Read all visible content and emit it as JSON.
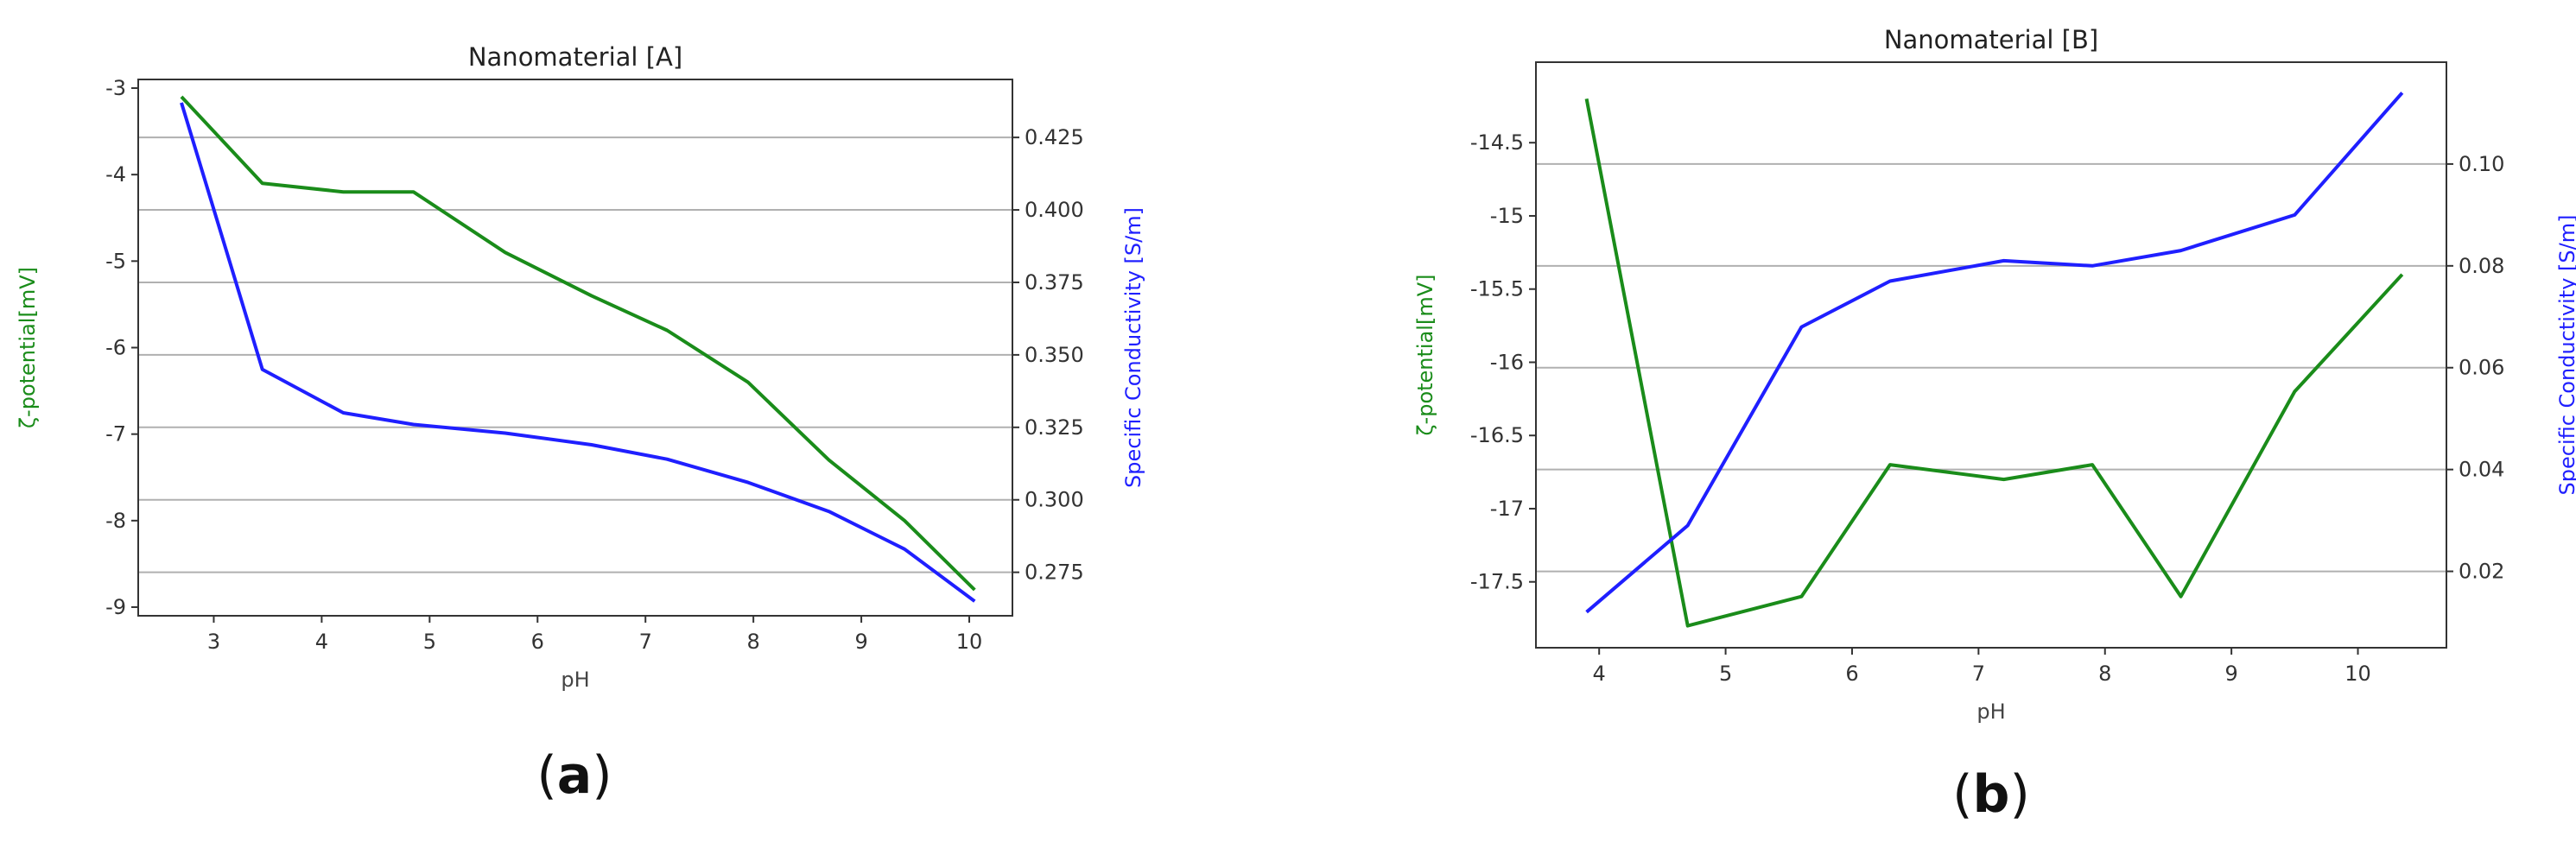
{
  "chart_data": [
    {
      "type": "line",
      "title": "Nanomaterial [A]",
      "xlabel": "pH",
      "ylabel": "ζ-potential[mV]",
      "y2label": "Specific Conductivity [S/m]",
      "caption_letter": "a",
      "xlim": [
        2.3,
        10.4
      ],
      "ylim": [
        -9.1,
        -2.9
      ],
      "y2lim": [
        0.26,
        0.445
      ],
      "xticks": [
        3,
        4,
        5,
        6,
        7,
        8,
        9,
        10
      ],
      "yticks": [
        -3,
        -4,
        -5,
        -6,
        -7,
        -8,
        -9
      ],
      "y2ticks": [
        0.425,
        0.4,
        0.375,
        0.35,
        0.325,
        0.3,
        0.275
      ],
      "y2tick_labels": [
        "0.425",
        "0.400",
        "0.375",
        "0.350",
        "0.325",
        "0.300",
        "0.275"
      ],
      "grid": "y2",
      "colors": {
        "zeta": "#1a8c1a",
        "conductivity": "#1f1fff",
        "grid": "#b0b0b0"
      },
      "series": [
        {
          "axis": "left",
          "x": [
            2.7,
            3.45,
            4.2,
            4.85,
            5.7,
            6.5,
            7.2,
            7.95,
            8.7,
            9.4,
            10.05
          ],
          "values": [
            -3.1,
            -4.1,
            -4.2,
            -4.2,
            -4.9,
            -5.4,
            -5.8,
            -6.4,
            -7.3,
            -8.0,
            -8.8
          ]
        },
        {
          "axis": "right",
          "x": [
            2.7,
            3.45,
            4.2,
            4.85,
            5.7,
            6.5,
            7.2,
            7.95,
            8.7,
            9.4,
            10.05
          ],
          "values": [
            0.437,
            0.345,
            0.33,
            0.326,
            0.323,
            0.319,
            0.314,
            0.306,
            0.296,
            0.283,
            0.265
          ]
        }
      ]
    },
    {
      "type": "line",
      "title": "Nanomaterial [B]",
      "xlabel": "pH",
      "ylabel": "ζ-potential[mV]",
      "y2label": "Specific Conductivity [S/m]",
      "caption_letter": "b",
      "xlim": [
        3.5,
        10.7
      ],
      "ylim": [
        -17.95,
        -13.95
      ],
      "y2lim": [
        0.005,
        0.12
      ],
      "xticks": [
        4,
        5,
        6,
        7,
        8,
        9,
        10
      ],
      "yticks": [
        -14.5,
        -15.0,
        -15.5,
        -16.0,
        -16.5,
        -17.0,
        -17.5
      ],
      "y2ticks": [
        0.1,
        0.08,
        0.06,
        0.04,
        0.02
      ],
      "y2tick_labels": [
        "0.10",
        "0.08",
        "0.06",
        "0.04",
        "0.02"
      ],
      "grid": "y2",
      "colors": {
        "zeta": "#1a8c1a",
        "conductivity": "#1f1fff",
        "grid": "#b0b0b0"
      },
      "series": [
        {
          "axis": "left",
          "x": [
            3.9,
            4.7,
            5.6,
            6.3,
            7.2,
            7.9,
            8.6,
            9.5,
            10.35
          ],
          "values": [
            -14.2,
            -17.8,
            -17.6,
            -16.7,
            -16.8,
            -16.7,
            -17.6,
            -16.2,
            -15.4
          ]
        },
        {
          "axis": "right",
          "x": [
            3.9,
            4.7,
            5.6,
            6.3,
            7.2,
            7.9,
            8.6,
            9.5,
            10.35
          ],
          "values": [
            0.012,
            0.029,
            0.068,
            0.077,
            0.081,
            0.08,
            0.083,
            0.09,
            0.114
          ]
        }
      ]
    }
  ]
}
